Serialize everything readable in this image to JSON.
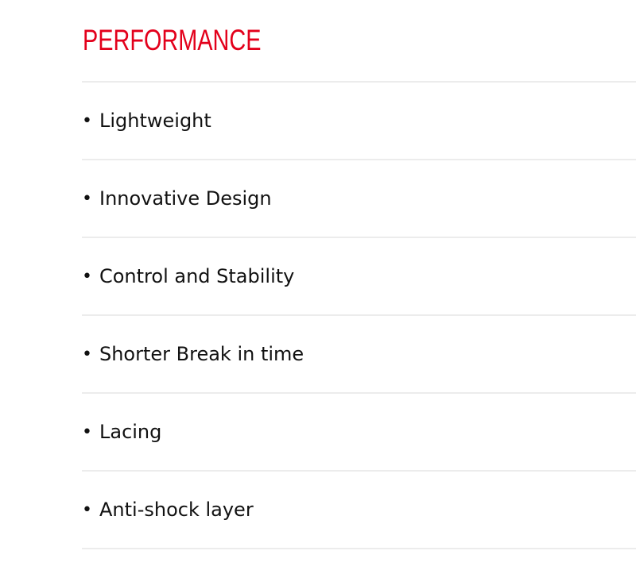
{
  "section": {
    "title": "PERFORMANCE",
    "title_color": "#e3001b",
    "items": [
      {
        "label": "Lightweight"
      },
      {
        "label": "Innovative Design"
      },
      {
        "label": "Control and Stability"
      },
      {
        "label": "Shorter Break in time"
      },
      {
        "label": "Lacing"
      },
      {
        "label": "Anti-shock layer"
      }
    ]
  }
}
